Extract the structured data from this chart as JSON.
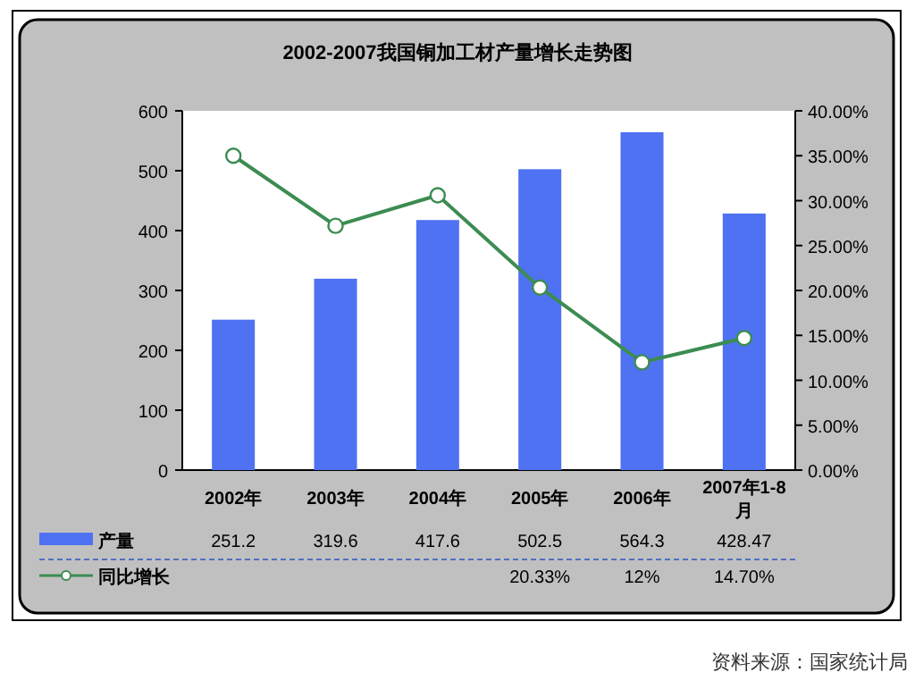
{
  "chart_data": {
    "type": "bar",
    "title": "2002-2007我国铜加工材产量增长走势图",
    "categories": [
      "2002年",
      "2003年",
      "2004年",
      "2005年",
      "2006年",
      "2007年1-8月"
    ],
    "series": [
      {
        "name": "产量",
        "color": "#4f72f2",
        "values": [
          251.2,
          319.6,
          417.6,
          502.5,
          564.3,
          428.47
        ],
        "value_labels": [
          "251.2",
          "319.6",
          "417.6",
          "502.5",
          "564.3",
          "428.47"
        ]
      },
      {
        "name": "同比增长",
        "type": "line",
        "axis": "y2",
        "color": "#3c8c52",
        "marker": "circle",
        "values": [
          35.0,
          27.2,
          30.6,
          20.33,
          12,
          14.7
        ],
        "value_labels": [
          null,
          null,
          null,
          "20.33%",
          "12%",
          "14.70%"
        ]
      }
    ],
    "ylim": [
      0,
      600
    ],
    "yticks": [
      0,
      100,
      200,
      300,
      400,
      500,
      600
    ],
    "y2lim": [
      0,
      40
    ],
    "y2ticks": [
      {
        "value": 0,
        "label": "0.00%"
      },
      {
        "value": 5,
        "label": "5.00%"
      },
      {
        "value": 10,
        "label": "10.00%"
      },
      {
        "value": 15,
        "label": "15.00%"
      },
      {
        "value": 20,
        "label": "20.00%"
      },
      {
        "value": 25,
        "label": "25.00%"
      },
      {
        "value": 30,
        "label": "30.00%"
      },
      {
        "value": 35,
        "label": "35.00%"
      },
      {
        "value": 40,
        "label": "40.00%"
      }
    ],
    "legend": "bottom",
    "grid": false,
    "annotations": [
      "资料来源：国家统计局"
    ]
  }
}
